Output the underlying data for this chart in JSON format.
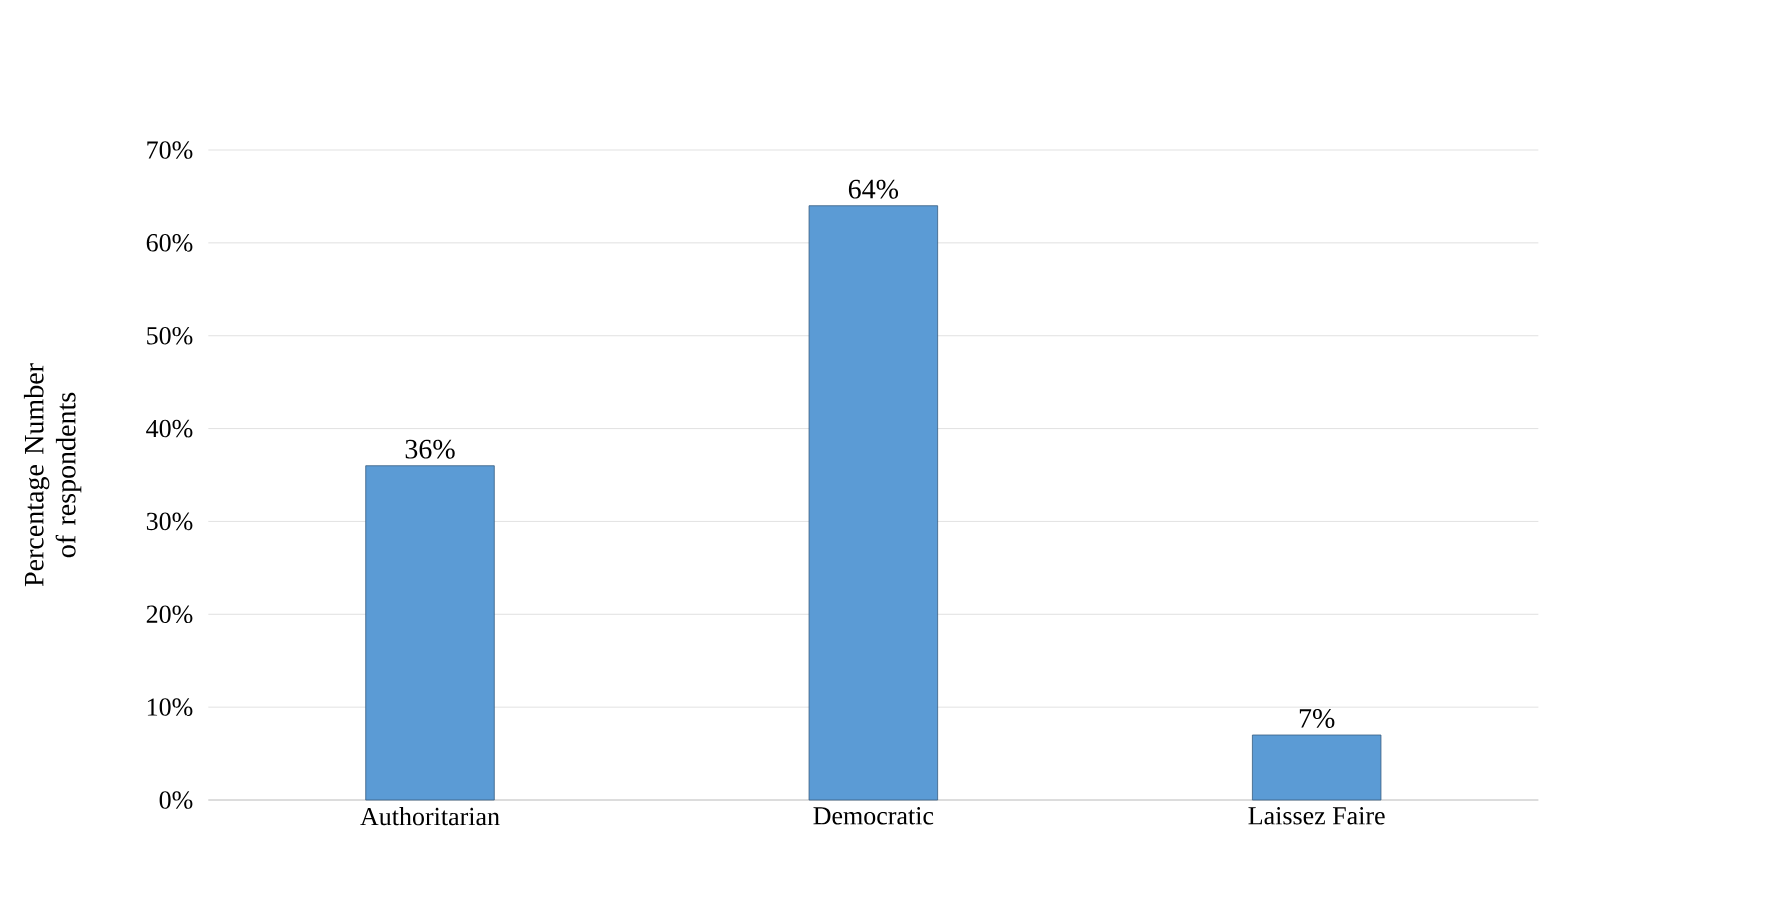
{
  "chart_data": {
    "type": "bar",
    "ylabel": "Percentage Number of respondents",
    "categories": [
      "Authoritarian",
      "Democratic",
      "Laissez Faire"
    ],
    "values": [
      36,
      64,
      7
    ],
    "value_labels": [
      "36%",
      "64%",
      "7%"
    ],
    "color": "#5b9bd5",
    "ylim": [
      0,
      70
    ],
    "yticks": [
      {
        "value": 0,
        "label": "0%"
      },
      {
        "value": 10,
        "label": "10%"
      },
      {
        "value": 20,
        "label": "20%"
      },
      {
        "value": 30,
        "label": "30%"
      },
      {
        "value": 40,
        "label": "40%"
      },
      {
        "value": 50,
        "label": "50%"
      },
      {
        "value": 60,
        "label": "60%"
      },
      {
        "value": 70,
        "label": "70%"
      }
    ],
    "grid": "y"
  }
}
